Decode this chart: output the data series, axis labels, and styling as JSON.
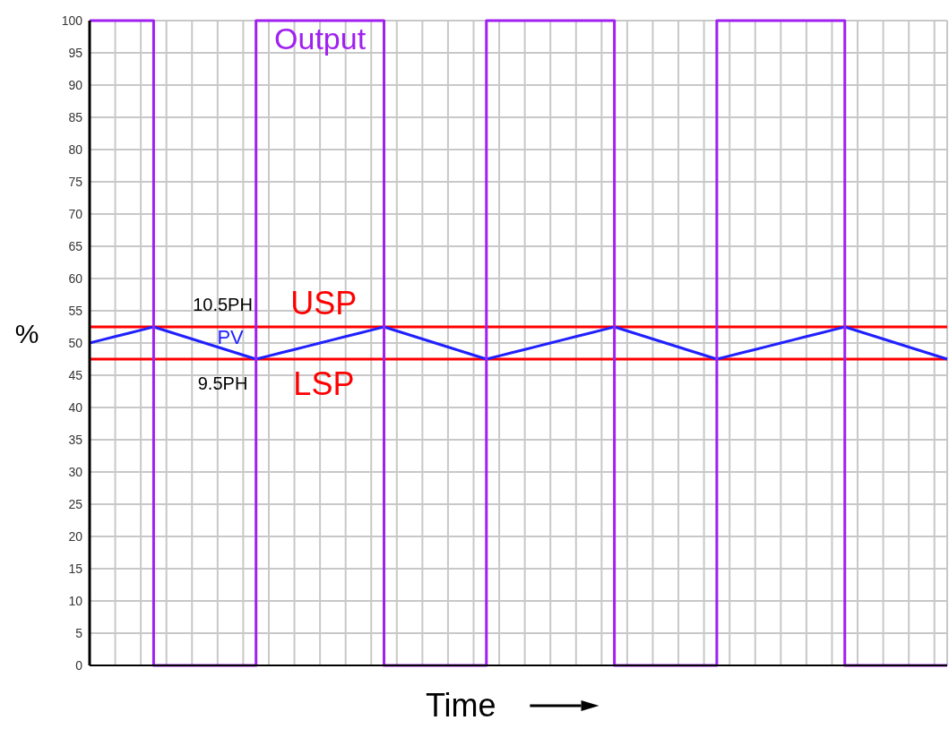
{
  "chart_data": {
    "type": "line",
    "xlabel": "Time",
    "ylabel": "%",
    "categories": [
      null,
      null,
      null,
      null,
      null,
      null,
      null,
      null,
      null,
      null,
      null,
      null,
      null,
      null,
      null,
      null,
      null,
      null,
      null,
      null,
      null,
      null,
      null,
      null,
      null,
      null,
      null,
      null,
      null,
      null,
      null,
      null,
      null,
      null,
      null,
      null,
      null,
      null,
      null,
      null,
      null,
      null,
      null,
      null,
      null,
      null,
      null,
      null,
      null,
      null,
      null,
      null,
      null,
      null,
      null,
      null,
      null,
      null,
      null,
      null,
      null,
      null,
      null,
      null,
      null,
      null,
      null,
      null
    ],
    "ylim": [
      0,
      100
    ],
    "yticks": [
      0,
      5,
      10,
      15,
      20,
      25,
      30,
      35,
      40,
      45,
      50,
      55,
      60,
      65,
      70,
      75,
      80,
      85,
      90,
      95,
      100
    ],
    "grid": true,
    "marker": "none",
    "line_style": "solid",
    "series": [
      {
        "name": "PV",
        "type": "line",
        "color": "#2020ff",
        "values": [
          50,
          50.5,
          51,
          51.5,
          52,
          52.5,
          51.875,
          51.25,
          50.625,
          50,
          49.375,
          48.75,
          48.125,
          47.5,
          48,
          48.5,
          49,
          49.5,
          50,
          50.5,
          51,
          51.5,
          52,
          52.5,
          51.875,
          51.25,
          50.625,
          50,
          49.375,
          48.75,
          48.125,
          47.5,
          48,
          48.5,
          49,
          49.5,
          50,
          50.5,
          51,
          51.5,
          52,
          52.5,
          51.875,
          51.25,
          50.625,
          50,
          49.375,
          48.75,
          48.125,
          47.5,
          48,
          48.5,
          49,
          49.5,
          50,
          50.5,
          51,
          51.5,
          52,
          52.5,
          51.875,
          51.25,
          50.625,
          50,
          49.375,
          48.75,
          48.125,
          47.5
        ]
      },
      {
        "name": "Output",
        "type": "step",
        "color": "#a020f0",
        "values": [
          100,
          100,
          100,
          100,
          100,
          0,
          0,
          0,
          0,
          0,
          0,
          0,
          0,
          100,
          100,
          100,
          100,
          100,
          100,
          100,
          100,
          100,
          100,
          0,
          0,
          0,
          0,
          0,
          0,
          0,
          0,
          100,
          100,
          100,
          100,
          100,
          100,
          100,
          100,
          100,
          100,
          0,
          0,
          0,
          0,
          0,
          0,
          0,
          0,
          100,
          100,
          100,
          100,
          100,
          100,
          100,
          100,
          100,
          100,
          0,
          0,
          0,
          0,
          0,
          0,
          0,
          0,
          0
        ]
      }
    ],
    "ref_lines": [
      {
        "axis": "y",
        "value": 52.5,
        "label": "USP",
        "color": "#ff0000"
      },
      {
        "axis": "y",
        "value": 47.5,
        "label": "LSP",
        "color": "#ff0000"
      }
    ],
    "annotations": [
      {
        "text": "10.5PH",
        "y": 52.5
      },
      {
        "text": "9.5PH",
        "y": 47.5
      }
    ]
  }
}
